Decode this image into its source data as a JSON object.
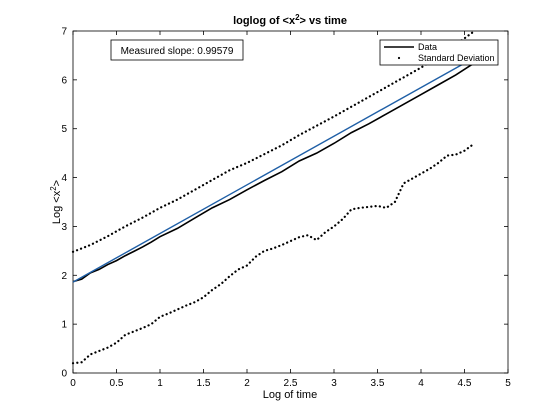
{
  "chart_data": {
    "type": "line",
    "title": "loglog of <x2> vs time",
    "title_parts": {
      "prefix": "loglog of <x",
      "sup": "2",
      "suffix": "> vs time"
    },
    "xlabel": "Log of time",
    "ylabel_parts": {
      "prefix": "Log <x",
      "sup": "2",
      "suffix": ">"
    },
    "xlim": [
      0,
      5
    ],
    "ylim": [
      0,
      7
    ],
    "xticks": [
      0,
      0.5,
      1,
      1.5,
      2,
      2.5,
      3,
      3.5,
      4,
      4.5,
      5
    ],
    "xtick_labels": [
      "0",
      "0.5",
      "1",
      "1.5",
      "2",
      "2.5",
      "3",
      "3.5",
      "4",
      "4.5",
      "5"
    ],
    "yticks": [
      0,
      1,
      2,
      3,
      4,
      5,
      6,
      7
    ],
    "ytick_labels": [
      "0",
      "1",
      "2",
      "3",
      "4",
      "5",
      "6",
      "7"
    ],
    "grid": false,
    "legend_position": "top-right",
    "annotation": "Measured slope: 0.99579",
    "series": [
      {
        "name": "Data",
        "style": "solid",
        "color": "#000000",
        "x": [
          0,
          0.1,
          0.2,
          0.3,
          0.4,
          0.5,
          0.6,
          0.7,
          0.8,
          0.9,
          1.0,
          1.2,
          1.4,
          1.6,
          1.8,
          2.0,
          2.2,
          2.4,
          2.6,
          2.8,
          3.0,
          3.2,
          3.4,
          3.6,
          3.8,
          4.0,
          4.2,
          4.4,
          4.6
        ],
        "y": [
          1.87,
          1.92,
          2.05,
          2.12,
          2.22,
          2.3,
          2.4,
          2.49,
          2.58,
          2.68,
          2.79,
          2.96,
          3.17,
          3.38,
          3.55,
          3.75,
          3.94,
          4.12,
          4.34,
          4.5,
          4.7,
          4.92,
          5.1,
          5.3,
          5.5,
          5.7,
          5.9,
          6.1,
          6.33
        ]
      },
      {
        "name": "fit",
        "style": "solid",
        "color": "#1f5fa6",
        "x": [
          0,
          4.6
        ],
        "y": [
          1.86,
          6.44
        ]
      },
      {
        "name": "Standard Deviation",
        "style": "dotted",
        "color": "#000000",
        "x": [
          0,
          0.2,
          0.4,
          0.6,
          0.8,
          1.0,
          1.2,
          1.4,
          1.6,
          1.8,
          2.0,
          2.2,
          2.4,
          2.6,
          2.8,
          3.0,
          3.2,
          3.4,
          3.6,
          3.8,
          4.0,
          4.2,
          4.4,
          4.6
        ],
        "y": [
          2.48,
          2.62,
          2.8,
          3.0,
          3.18,
          3.38,
          3.55,
          3.75,
          3.95,
          4.15,
          4.3,
          4.48,
          4.66,
          4.87,
          5.06,
          5.25,
          5.45,
          5.65,
          5.85,
          6.05,
          6.25,
          6.48,
          6.72,
          6.98
        ]
      },
      {
        "name": "Standard Deviation (lower)",
        "style": "dotted",
        "color": "#000000",
        "x": [
          0,
          0.1,
          0.2,
          0.3,
          0.4,
          0.5,
          0.6,
          0.7,
          0.8,
          0.9,
          1.0,
          1.1,
          1.2,
          1.3,
          1.4,
          1.5,
          1.6,
          1.7,
          1.8,
          1.9,
          2.0,
          2.1,
          2.2,
          2.3,
          2.4,
          2.5,
          2.6,
          2.7,
          2.8,
          2.9,
          3.0,
          3.1,
          3.2,
          3.3,
          3.4,
          3.5,
          3.6,
          3.7,
          3.8,
          3.9,
          4.0,
          4.1,
          4.2,
          4.3,
          4.4,
          4.5,
          4.6
        ],
        "y": [
          0.2,
          0.22,
          0.38,
          0.45,
          0.52,
          0.62,
          0.78,
          0.85,
          0.92,
          1.0,
          1.15,
          1.22,
          1.3,
          1.38,
          1.45,
          1.55,
          1.7,
          1.82,
          1.98,
          2.12,
          2.2,
          2.38,
          2.5,
          2.55,
          2.62,
          2.7,
          2.78,
          2.82,
          2.72,
          2.88,
          3.0,
          3.15,
          3.35,
          3.38,
          3.4,
          3.42,
          3.38,
          3.5,
          3.88,
          3.98,
          4.08,
          4.18,
          4.3,
          4.45,
          4.47,
          4.55,
          4.68
        ]
      }
    ]
  }
}
